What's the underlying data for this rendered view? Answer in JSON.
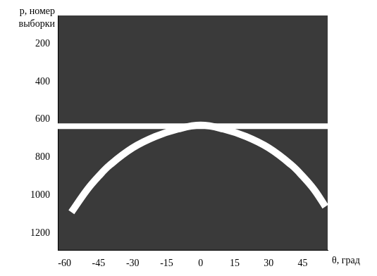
{
  "chart_data": {
    "type": "line",
    "x_label": "θ, град",
    "y_label": "p, номер выборки",
    "xlim": [
      -63,
      56
    ],
    "ylim": [
      1290,
      50
    ],
    "xticks": [
      -60,
      -45,
      -30,
      -15,
      0,
      15,
      30,
      45
    ],
    "yticks": [
      200,
      400,
      600,
      800,
      1000,
      1200
    ],
    "grid": false,
    "series": [
      {
        "color": "#ffffff",
        "x": [
          -57,
          -50,
          -45,
          -40,
          -30,
          -20,
          -10,
          0,
          10,
          20,
          30,
          40,
          45,
          50,
          55
        ],
        "values": [
          1090,
          970,
          900,
          840,
          750,
          690,
          650,
          630,
          650,
          690,
          750,
          840,
          900,
          970,
          1060
        ]
      },
      {
        "color": "#ffffff",
        "x": [
          -63,
          -40,
          -20,
          0,
          20,
          40,
          56
        ],
        "values": [
          635,
          635,
          635,
          635,
          635,
          635,
          635
        ]
      }
    ]
  }
}
